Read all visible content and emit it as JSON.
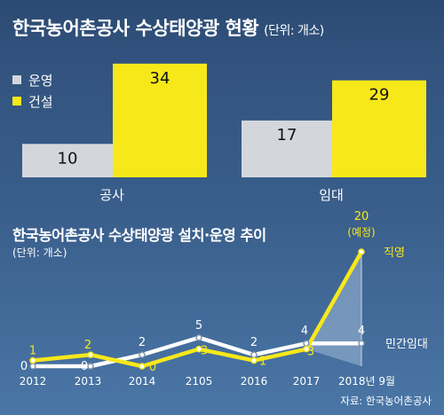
{
  "header": {
    "title": "한국농어촌공사 수상태양광 현황",
    "unit": "(단위: 개소)"
  },
  "colors": {
    "background": "#2e4c73",
    "operation": "#d3d7dc",
    "construction": "#f7e81a",
    "private_line": "#ffffff",
    "direct_line": "#f7e81a"
  },
  "line_section": {
    "title": "한국농어촌공사 수상태양광 설치·운영 추이",
    "unit": "(단위: 개소)"
  },
  "source": "자료: 한국농어촌공사",
  "chart_data": [
    {
      "type": "bar",
      "title": "한국농어촌공사 수상태양광 현황",
      "unit": "(단위: 개소)",
      "categories": [
        "공사",
        "임대"
      ],
      "series": [
        {
          "name": "운영",
          "values": [
            10,
            17
          ]
        },
        {
          "name": "건설",
          "values": [
            34,
            29
          ]
        }
      ],
      "legend": "top-left",
      "grid": false
    },
    {
      "type": "line",
      "title": "한국농어촌공사 수상태양광 설치·운영 추이",
      "unit": "(단위: 개소)",
      "x": [
        "2012",
        "2013",
        "2014",
        "2105",
        "2016",
        "2017",
        "2018년 9월"
      ],
      "series": [
        {
          "name": "민간임대",
          "values": [
            0,
            0,
            2,
            5,
            2,
            4,
            4
          ]
        },
        {
          "name": "직영",
          "values": [
            1,
            2,
            0,
            3,
            1,
            3,
            20
          ]
        }
      ],
      "annotations": [
        "(예정)"
      ],
      "grid": false
    }
  ]
}
